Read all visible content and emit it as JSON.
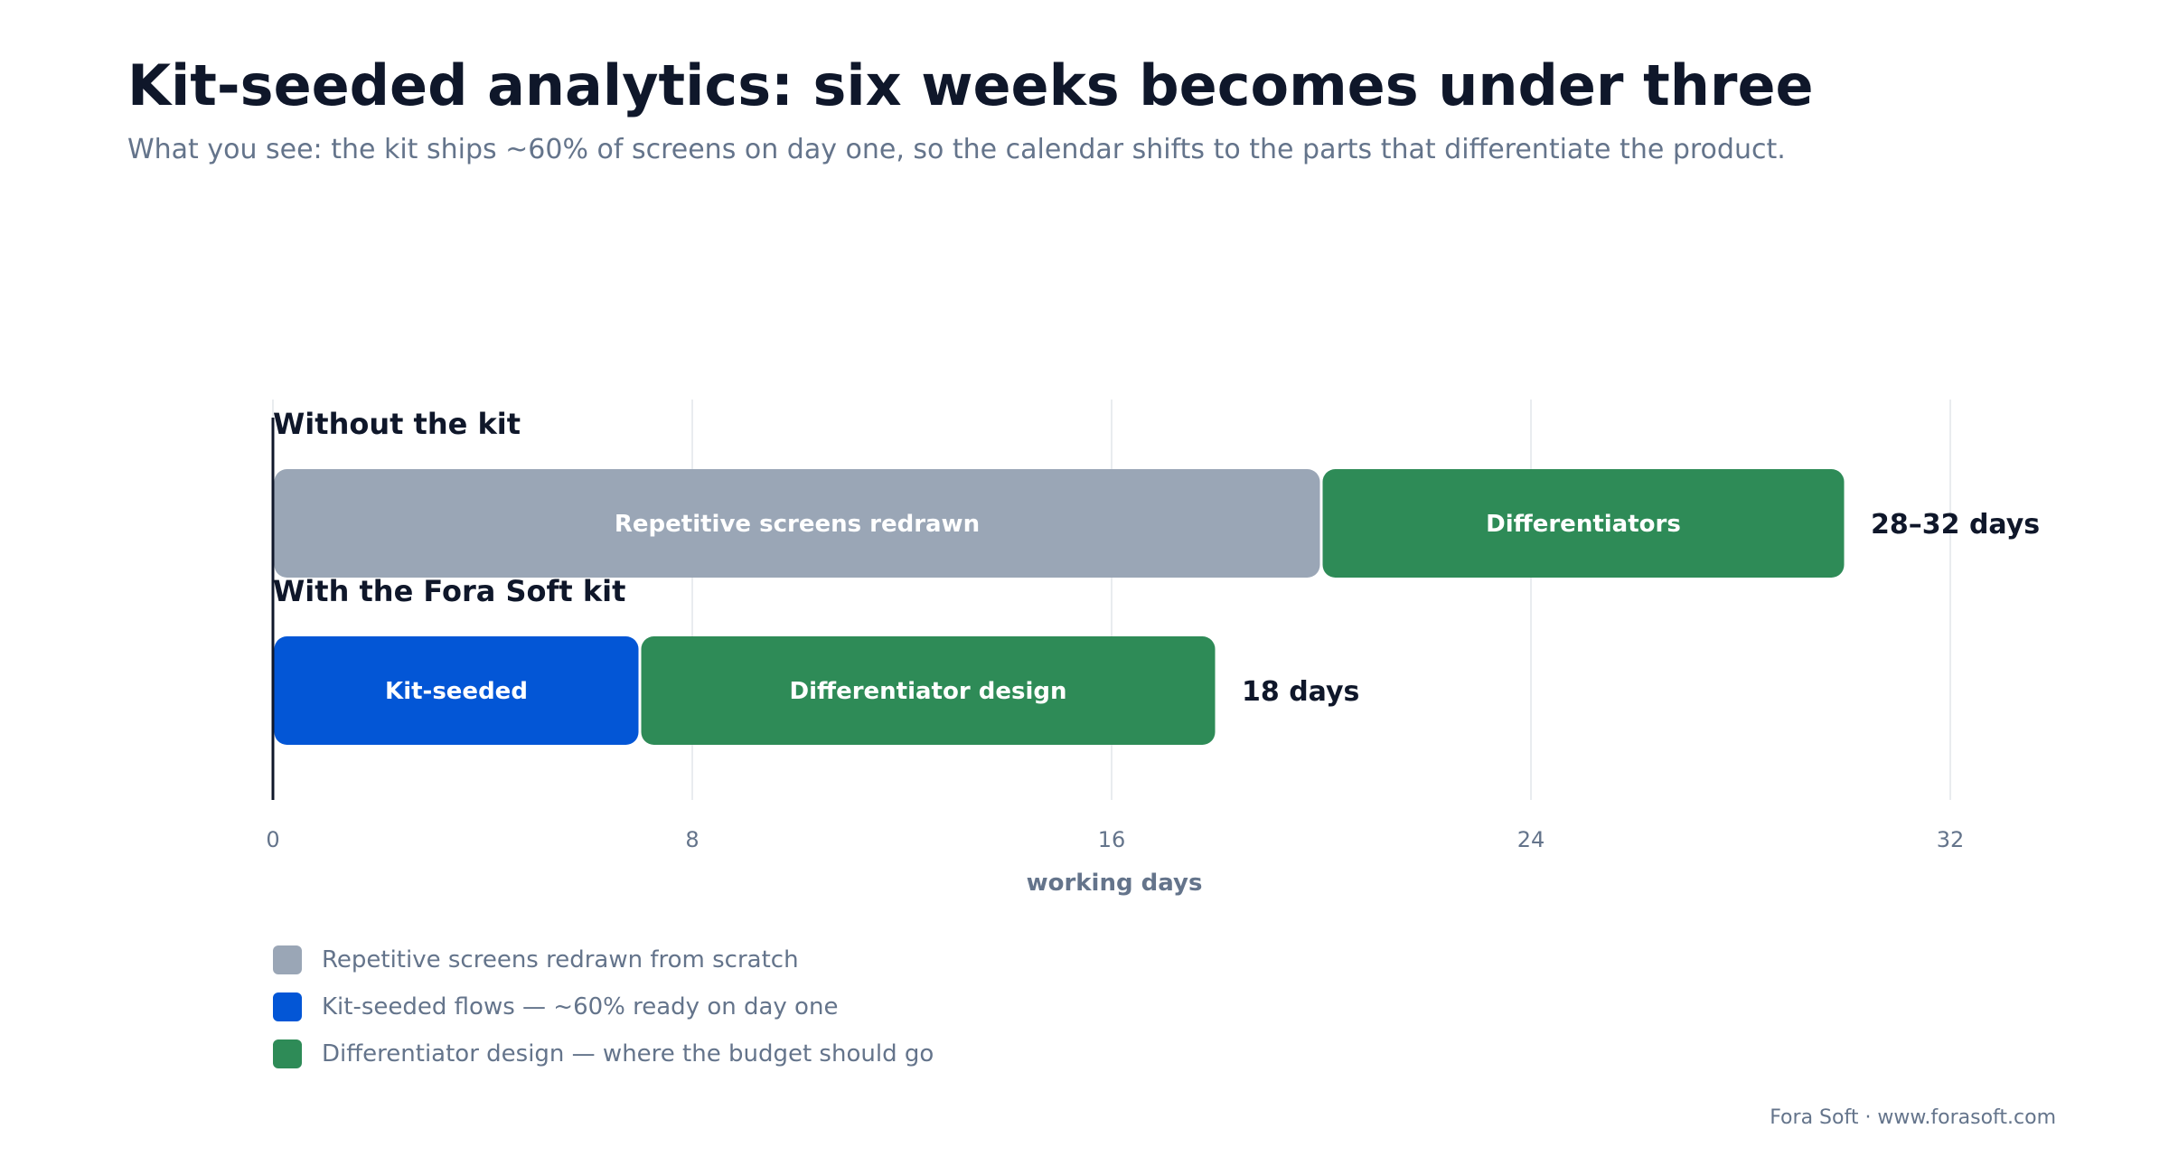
{
  "header": {
    "title": "Kit-seeded analytics: six weeks becomes under three",
    "subtitle": "What you see: the kit ships ~60% of screens on day one, so the calendar shifts to the parts that differentiate the product."
  },
  "footer": {
    "credit": "Fora Soft · www.forasoft.com"
  },
  "chart_data": {
    "type": "bar",
    "orientation": "horizontal",
    "stacked": true,
    "xlabel": "working days",
    "xlim": [
      0,
      32
    ],
    "xticks": [
      0,
      8,
      16,
      24,
      32
    ],
    "grid": true,
    "legend_position": "bottom-left",
    "colors": {
      "repetitive": "#9aa6b6",
      "kit": "#0356d6",
      "differentiator": "#2e8b57"
    },
    "rows": [
      {
        "label": "Without the kit",
        "total_label": "28–32 days",
        "segments": [
          {
            "key": "repetitive",
            "label": "Repetitive screens redrawn",
            "start": 0,
            "end": 20
          },
          {
            "key": "differentiator",
            "label": "Differentiators",
            "start": 20,
            "end": 30
          }
        ]
      },
      {
        "label": "With the Fora Soft kit",
        "total_label": "18 days",
        "segments": [
          {
            "key": "kit",
            "label": "Kit-seeded",
            "start": 0,
            "end": 7
          },
          {
            "key": "differentiator",
            "label": "Differentiator design",
            "start": 7,
            "end": 18
          }
        ]
      }
    ],
    "legend": [
      {
        "key": "repetitive",
        "label": "Repetitive screens redrawn from scratch"
      },
      {
        "key": "kit",
        "label": "Kit-seeded flows — ~60% ready on day one"
      },
      {
        "key": "differentiator",
        "label": "Differentiator design — where the budget should go"
      }
    ]
  }
}
